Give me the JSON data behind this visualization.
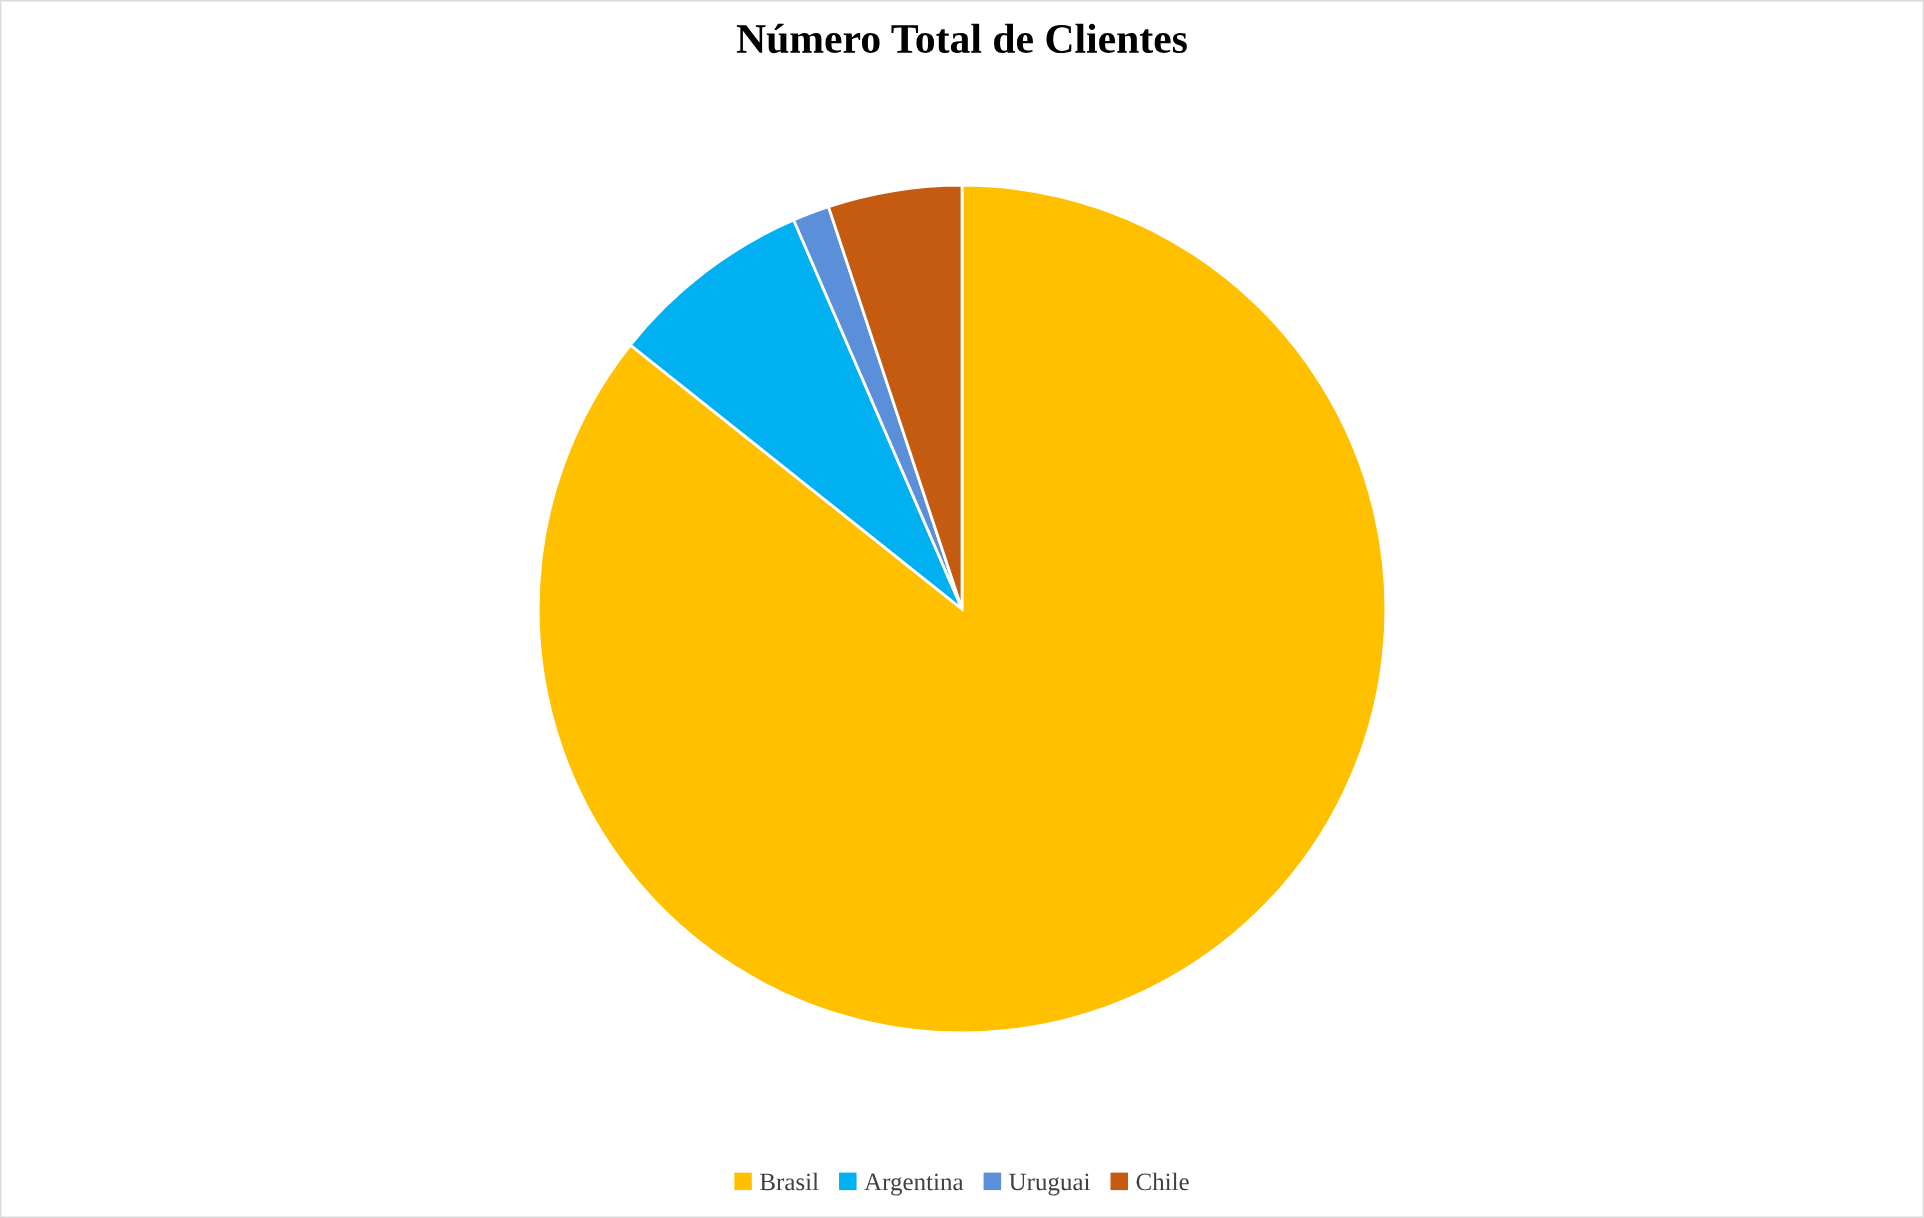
{
  "chart_data": {
    "type": "pie",
    "title": "Número Total de Clientes",
    "categories": [
      "Brasil",
      "Argentina",
      "Uruguai",
      "Chile"
    ],
    "values": [
      85.7,
      7.8,
      1.4,
      5.1
    ],
    "colors": [
      "#ffc000",
      "#00b0f0",
      "#5b8fd9",
      "#c55a11"
    ],
    "legend": "bottom"
  }
}
